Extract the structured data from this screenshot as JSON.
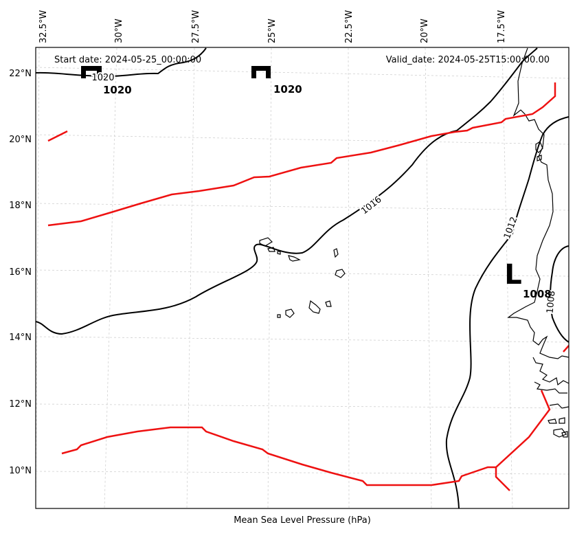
{
  "map": {
    "start_date": "Start date: 2024-05-25_00:00:00",
    "valid_date": "Valid_date: 2024-05-25T15:00:00.00",
    "caption": "Mean Sea Level Pressure (hPa)",
    "lon_labels": [
      "32.5°W",
      "30°W",
      "27.5°W",
      "25°W",
      "22.5°W",
      "20°W",
      "17.5°W"
    ],
    "lat_labels": [
      "22°N",
      "20°N",
      "18°N",
      "16°N",
      "14°N",
      "12°N",
      "10°N"
    ],
    "contour_labels": [
      "1020",
      "1016",
      "1012",
      "1008"
    ],
    "pressure_centers": [
      {
        "type": "H",
        "value": "1020"
      },
      {
        "type": "H",
        "value": "1020"
      },
      {
        "type": "L",
        "value": "1008"
      }
    ],
    "colors": {
      "isobar": "#000000",
      "front": "#ee1111",
      "coastline": "#000000",
      "gridline": "#d0d0d0"
    }
  }
}
